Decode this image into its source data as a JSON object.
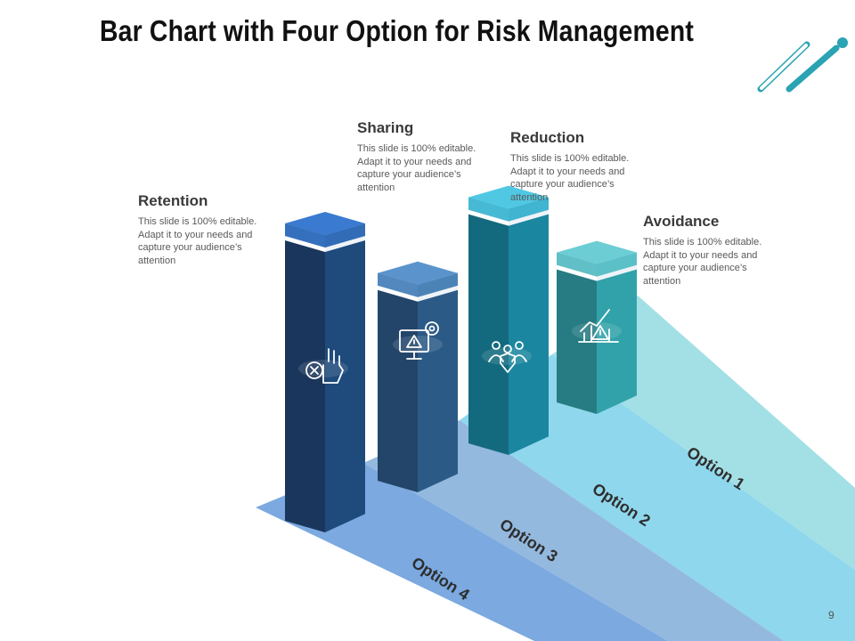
{
  "slide": {
    "title": "Bar Chart with Four Option for Risk Management",
    "page_number": "9"
  },
  "options": [
    {
      "label": "Option 1",
      "band_color": "#a3e0e6"
    },
    {
      "label": "Option 2",
      "band_color": "#8fd7ec"
    },
    {
      "label": "Option 3",
      "band_color": "#93b9de"
    },
    {
      "label": "Option 4",
      "band_color": "#7ba9e0"
    }
  ],
  "bars": [
    {
      "name": "Retention",
      "icon": "hand-stop-icon",
      "level": 1.0,
      "colors": {
        "top": "#3a7ad0",
        "front": "#1b365c",
        "side": "#1e4a7c"
      }
    },
    {
      "name": "Sharing",
      "icon": "monitor-warning-icon",
      "level": 0.72,
      "colors": {
        "top": "#5b94cc",
        "front": "#23456a",
        "side": "#2b5a86"
      }
    },
    {
      "name": "Reduction",
      "icon": "team-shield-icon",
      "level": 0.84,
      "colors": {
        "top": "#50c8e4",
        "front": "#136a7e",
        "side": "#1b86a0"
      }
    },
    {
      "name": "Avoidance",
      "icon": "chart-warning-icon",
      "level": 0.54,
      "colors": {
        "top": "#6ccdd4",
        "front": "#267c82",
        "side": "#32a2aa"
      }
    }
  ],
  "callouts": [
    {
      "title": "Retention",
      "text": "This slide is 100% editable. Adapt it to your needs and capture your audience’s attention"
    },
    {
      "title": "Sharing",
      "text": "This slide is 100% editable. Adapt it to your needs and capture your audience’s attention"
    },
    {
      "title": "Reduction",
      "text": "This slide is 100% editable. Adapt it to your needs and capture your audience’s attention"
    },
    {
      "title": "Avoidance",
      "text": "This slide is 100% editable. Adapt it to your needs and capture your audience’s attention"
    }
  ],
  "accent_color": "#2aa3b3"
}
